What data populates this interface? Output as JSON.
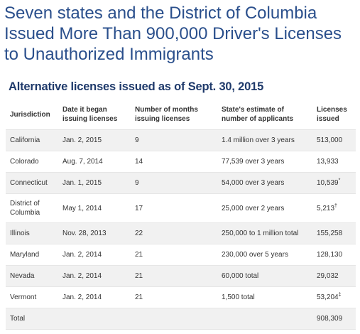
{
  "headline": "Seven states and the District of Columbia Issued More Than 900,000 Driver's Licenses to Unauthorized Immigrants",
  "subhead": "Alternative licenses issued as of Sept. 30, 2015",
  "table": {
    "headers": {
      "jurisdiction": "Jurisdiction",
      "date_began": "Date it began issuing licenses",
      "months": "Number of months issuing licenses",
      "estimate": "State's estimate of number of applicants",
      "issued": "Licenses issued"
    },
    "rows": [
      {
        "jurisdiction": "California",
        "date": "Jan. 2, 2015",
        "months": "9",
        "estimate": "1.4 million over 3 years",
        "issued": "513,000",
        "mark": ""
      },
      {
        "jurisdiction": "Colorado",
        "date": "Aug. 7, 2014",
        "months": "14",
        "estimate": "77,539 over 3 years",
        "issued": "13,933",
        "mark": ""
      },
      {
        "jurisdiction": "Connecticut",
        "date": "Jan. 1, 2015",
        "months": "9",
        "estimate": "54,000 over 3 years",
        "issued": "10,539",
        "mark": "*"
      },
      {
        "jurisdiction": "District of Columbia",
        "date": "May 1, 2014",
        "months": "17",
        "estimate": "25,000 over 2 years",
        "issued": "5,213",
        "mark": "†"
      },
      {
        "jurisdiction": "Illinois",
        "date": "Nov. 28, 2013",
        "months": "22",
        "estimate": "250,000 to 1 million total",
        "issued": "155,258",
        "mark": ""
      },
      {
        "jurisdiction": "Maryland",
        "date": "Jan. 2, 2014",
        "months": "21",
        "estimate": "230,000 over 5 years",
        "issued": "128,130",
        "mark": ""
      },
      {
        "jurisdiction": "Nevada",
        "date": "Jan. 2, 2014",
        "months": "21",
        "estimate": "60,000 total",
        "issued": "29,032",
        "mark": ""
      },
      {
        "jurisdiction": "Vermont",
        "date": "Jan. 2, 2014",
        "months": "21",
        "estimate": "1,500 total",
        "issued": "53,204",
        "mark": "‡"
      },
      {
        "jurisdiction": "Total",
        "date": "",
        "months": "",
        "estimate": "",
        "issued": "908,309",
        "mark": ""
      }
    ]
  },
  "colors": {
    "headline": "#2a4f8c",
    "subhead": "#1f3a6b",
    "stripe": "#f1f1f1"
  }
}
